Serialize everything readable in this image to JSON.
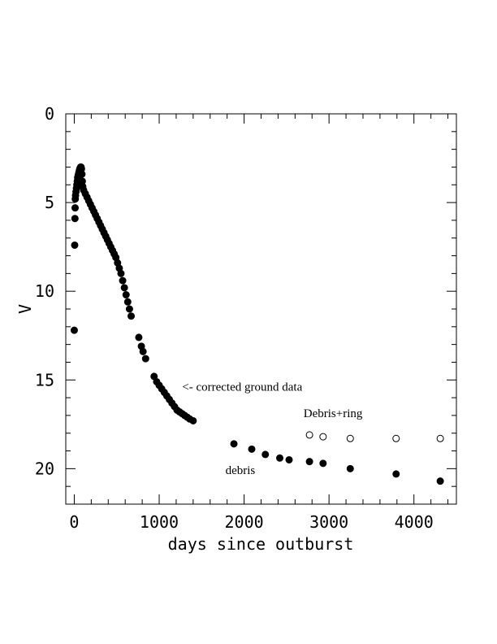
{
  "chart_data": {
    "type": "scatter",
    "title": "",
    "xlabel": "days since outburst",
    "ylabel": "V",
    "xlim": [
      -100,
      4500
    ],
    "ylim": [
      22,
      0
    ],
    "y_inverted": true,
    "grid": false,
    "x_ticks": [
      0,
      1000,
      2000,
      3000,
      4000
    ],
    "y_ticks": [
      0,
      5,
      10,
      15,
      20
    ],
    "x_tick_labels": [
      "0",
      "1000",
      "2000",
      "3000",
      "4000"
    ],
    "y_tick_labels": [
      "0",
      "5",
      "10",
      "15",
      "20"
    ],
    "series": [
      {
        "marker": "filled-circle",
        "points": [
          [
            0,
            12.2
          ],
          [
            5,
            7.4
          ],
          [
            8,
            5.9
          ],
          [
            10,
            5.3
          ],
          [
            12,
            4.8
          ],
          [
            15,
            4.6
          ],
          [
            20,
            4.4
          ],
          [
            25,
            4.2
          ],
          [
            30,
            4.0
          ],
          [
            35,
            3.8
          ],
          [
            40,
            3.6
          ],
          [
            45,
            3.5
          ],
          [
            50,
            3.4
          ],
          [
            55,
            3.3
          ],
          [
            60,
            3.2
          ],
          [
            65,
            3.1
          ],
          [
            70,
            3.05
          ],
          [
            75,
            3.0
          ],
          [
            80,
            3.0
          ],
          [
            85,
            3.1
          ],
          [
            90,
            3.4
          ],
          [
            95,
            3.8
          ],
          [
            100,
            4.1
          ],
          [
            110,
            4.3
          ],
          [
            130,
            4.5
          ],
          [
            150,
            4.7
          ],
          [
            170,
            4.9
          ],
          [
            190,
            5.1
          ],
          [
            210,
            5.3
          ],
          [
            230,
            5.5
          ],
          [
            250,
            5.7
          ],
          [
            270,
            5.9
          ],
          [
            290,
            6.1
          ],
          [
            310,
            6.3
          ],
          [
            330,
            6.5
          ],
          [
            350,
            6.7
          ],
          [
            370,
            6.9
          ],
          [
            390,
            7.1
          ],
          [
            410,
            7.3
          ],
          [
            430,
            7.5
          ],
          [
            450,
            7.7
          ],
          [
            470,
            7.9
          ],
          [
            490,
            8.1
          ],
          [
            510,
            8.4
          ],
          [
            530,
            8.7
          ],
          [
            550,
            9.0
          ],
          [
            570,
            9.4
          ],
          [
            590,
            9.8
          ],
          [
            610,
            10.2
          ],
          [
            630,
            10.6
          ],
          [
            650,
            11.0
          ],
          [
            670,
            11.4
          ],
          [
            760,
            12.6
          ],
          [
            790,
            13.1
          ],
          [
            810,
            13.4
          ],
          [
            840,
            13.8
          ],
          [
            940,
            14.8
          ],
          [
            970,
            15.1
          ],
          [
            1000,
            15.3
          ],
          [
            1030,
            15.5
          ],
          [
            1060,
            15.7
          ],
          [
            1090,
            15.9
          ],
          [
            1120,
            16.1
          ],
          [
            1150,
            16.3
          ],
          [
            1180,
            16.5
          ],
          [
            1210,
            16.7
          ],
          [
            1240,
            16.8
          ],
          [
            1270,
            16.9
          ],
          [
            1300,
            17.0
          ],
          [
            1330,
            17.1
          ],
          [
            1360,
            17.2
          ],
          [
            1400,
            17.3
          ],
          [
            1880,
            18.6
          ],
          [
            2090,
            18.9
          ],
          [
            2250,
            19.2
          ],
          [
            2420,
            19.4
          ],
          [
            2530,
            19.5
          ],
          [
            2770,
            19.6
          ],
          [
            2930,
            19.7
          ],
          [
            3250,
            20.0
          ],
          [
            3790,
            20.3
          ],
          [
            4310,
            20.7
          ]
        ]
      },
      {
        "marker": "open-circle",
        "points": [
          [
            2770,
            18.1
          ],
          [
            2930,
            18.2
          ],
          [
            3250,
            18.3
          ],
          [
            3790,
            18.3
          ],
          [
            4310,
            18.3
          ]
        ]
      }
    ],
    "annotations": [
      {
        "text": "<- corrected ground data",
        "x": 1270,
        "y": 15.6
      },
      {
        "text": "Debris+ring",
        "x": 2700,
        "y": 17.1
      },
      {
        "text": "debris",
        "x": 1780,
        "y": 20.3
      }
    ]
  }
}
